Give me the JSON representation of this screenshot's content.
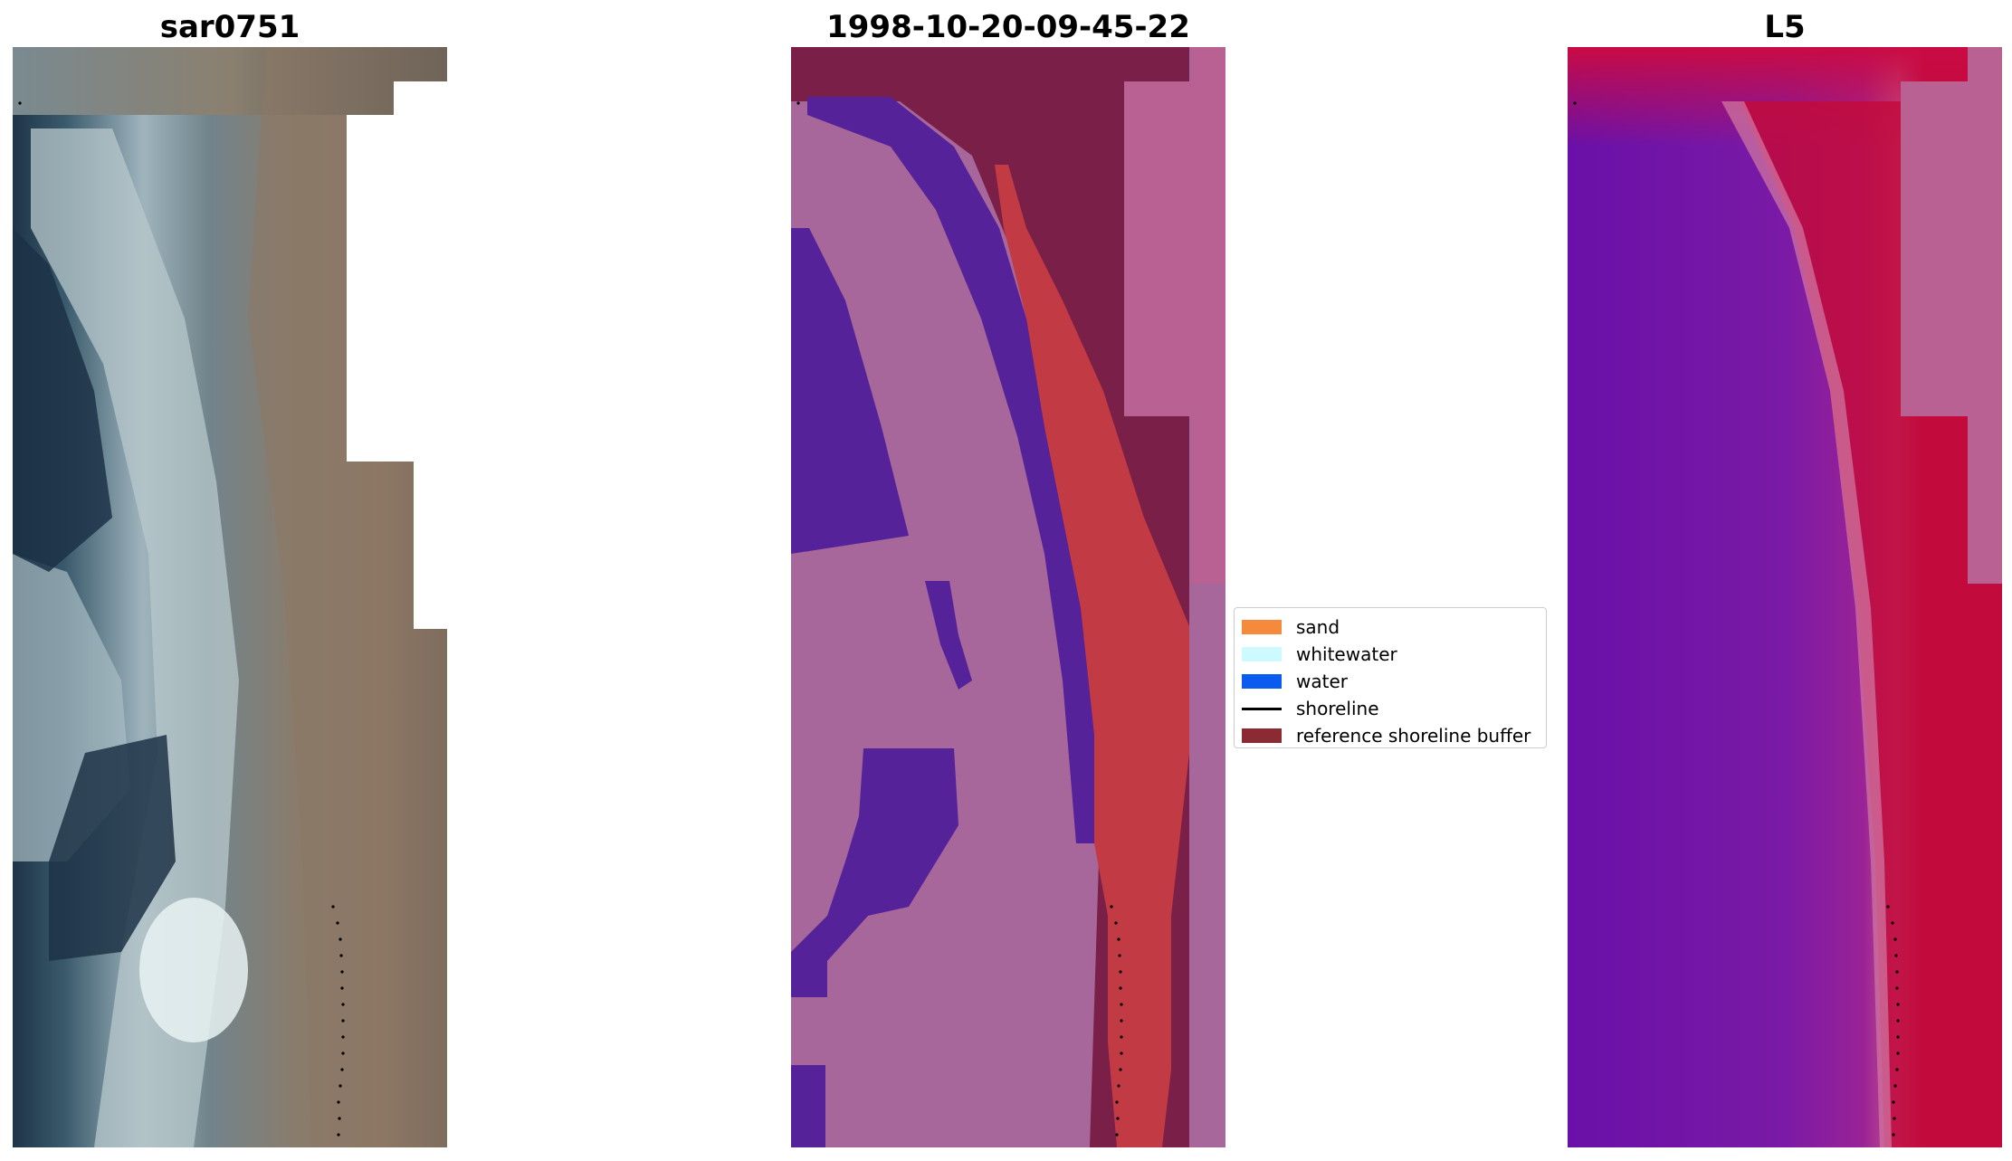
{
  "panels": [
    {
      "title": "sar0751"
    },
    {
      "title": "1998-10-20-09-45-22"
    },
    {
      "title": "L5"
    }
  ],
  "legend": {
    "items": [
      {
        "label": "sand",
        "kind": "patch",
        "color": "#f58a3d"
      },
      {
        "label": "whitewater",
        "kind": "patch",
        "color": "#ccfaff"
      },
      {
        "label": "water",
        "kind": "patch",
        "color": "#0a5cf0"
      },
      {
        "label": "shoreline",
        "kind": "line",
        "color": "#000000"
      },
      {
        "label": "reference shoreline buffer",
        "kind": "patch",
        "color": "#8c2a34"
      }
    ]
  },
  "colors": {
    "rgb_beach": "#8b7765",
    "rgb_wave": "#aebfc4",
    "rgb_water": "#22384a",
    "class_sand_overlay": "#c23a44",
    "class_water_overlay": "#55229a",
    "class_whitewater_overlay": "#a8679a",
    "class_buffer": "#7a1f48",
    "mask_nodata": "#b86192",
    "index_water": "#6d12a8",
    "index_land": "#c20b3c"
  }
}
